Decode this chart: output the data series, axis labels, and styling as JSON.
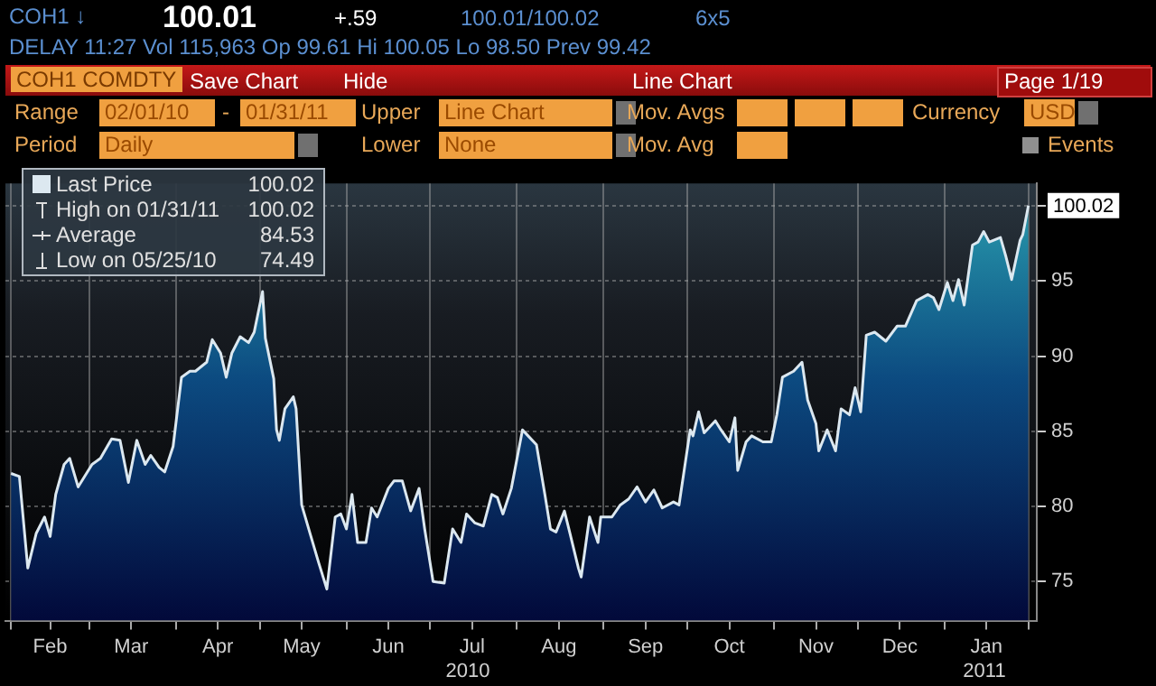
{
  "chart_data": {
    "type": "area",
    "x": [
      "2010-02-01",
      "2010-02-04",
      "2010-02-07",
      "2010-02-10",
      "2010-02-13",
      "2010-02-15",
      "2010-02-17",
      "2010-02-20",
      "2010-02-22",
      "2010-02-25",
      "2010-02-27",
      "2010-03-02",
      "2010-03-05",
      "2010-03-09",
      "2010-03-12",
      "2010-03-15",
      "2010-03-18",
      "2010-03-21",
      "2010-03-23",
      "2010-03-26",
      "2010-03-28",
      "2010-03-31",
      "2010-04-03",
      "2010-04-06",
      "2010-04-08",
      "2010-04-12",
      "2010-04-14",
      "2010-04-17",
      "2010-04-19",
      "2010-04-21",
      "2010-04-24",
      "2010-04-27",
      "2010-04-29",
      "2010-05-02",
      "2010-05-03",
      "2010-05-06",
      "2010-05-07",
      "2010-05-08",
      "2010-05-10",
      "2010-05-13",
      "2010-05-14",
      "2010-05-16",
      "2010-05-19",
      "2010-05-22",
      "2010-05-25",
      "2010-05-28",
      "2010-05-30",
      "2010-06-01",
      "2010-06-03",
      "2010-06-05",
      "2010-06-08",
      "2010-06-10",
      "2010-06-12",
      "2010-06-16",
      "2010-06-18",
      "2010-06-21",
      "2010-06-24",
      "2010-06-27",
      "2010-06-29",
      "2010-07-02",
      "2010-07-06",
      "2010-07-09",
      "2010-07-12",
      "2010-07-14",
      "2010-07-17",
      "2010-07-20",
      "2010-07-23",
      "2010-07-25",
      "2010-07-27",
      "2010-07-30",
      "2010-08-03",
      "2010-08-05",
      "2010-08-08",
      "2010-08-11",
      "2010-08-13",
      "2010-08-15",
      "2010-08-18",
      "2010-08-20",
      "2010-08-23",
      "2010-08-24",
      "2010-08-27",
      "2010-08-30",
      "2010-08-31",
      "2010-09-04",
      "2010-09-07",
      "2010-09-10",
      "2010-09-13",
      "2010-09-16",
      "2010-09-19",
      "2010-09-22",
      "2010-09-26",
      "2010-09-28",
      "2010-10-02",
      "2010-10-03",
      "2010-10-05",
      "2010-10-07",
      "2010-10-11",
      "2010-10-13",
      "2010-10-16",
      "2010-10-18",
      "2010-10-19",
      "2010-10-22",
      "2010-10-24",
      "2010-10-28",
      "2010-10-31",
      "2010-11-02",
      "2010-11-04",
      "2010-11-08",
      "2010-11-11",
      "2010-11-13",
      "2010-11-16",
      "2010-11-17",
      "2010-11-20",
      "2010-11-23",
      "2010-11-25",
      "2010-11-28",
      "2010-11-30",
      "2010-12-02",
      "2010-12-04",
      "2010-12-07",
      "2010-12-11",
      "2010-12-15",
      "2010-12-18",
      "2010-12-22",
      "2010-12-26",
      "2010-12-28",
      "2010-12-30",
      "2011-01-02",
      "2011-01-04",
      "2011-01-06",
      "2011-01-08",
      "2011-01-11",
      "2011-01-13",
      "2011-01-15",
      "2011-01-17",
      "2011-01-21",
      "2011-01-23",
      "2011-01-25",
      "2011-01-28",
      "2011-01-29",
      "2011-01-31"
    ],
    "series": [
      {
        "name": "Last Price",
        "color": "#dce8f0",
        "values": [
          82.2,
          82.0,
          75.9,
          78.2,
          79.3,
          78.0,
          80.8,
          82.8,
          83.2,
          81.3,
          81.9,
          82.8,
          83.2,
          84.5,
          84.4,
          81.6,
          84.4,
          82.8,
          83.4,
          82.6,
          82.3,
          84.0,
          88.6,
          89.0,
          89.0,
          89.6,
          91.1,
          90.2,
          88.6,
          90.2,
          91.3,
          90.9,
          91.6,
          94.3,
          91.2,
          88.5,
          85.1,
          84.4,
          86.5,
          87.3,
          86.5,
          80.1,
          78.2,
          76.3,
          74.5,
          79.3,
          79.5,
          78.5,
          80.8,
          77.6,
          77.6,
          79.9,
          79.3,
          81.2,
          81.7,
          81.7,
          79.7,
          81.2,
          78.5,
          75.0,
          74.9,
          78.5,
          77.6,
          79.5,
          78.9,
          78.7,
          80.8,
          80.6,
          79.5,
          81.2,
          85.1,
          84.7,
          84.1,
          80.8,
          78.5,
          78.3,
          79.7,
          78.2,
          75.9,
          75.3,
          79.3,
          77.6,
          79.3,
          79.3,
          80.1,
          80.5,
          81.3,
          80.3,
          81.1,
          79.9,
          80.3,
          80.1,
          85.1,
          84.7,
          86.3,
          84.9,
          85.7,
          85.1,
          84.3,
          85.9,
          82.4,
          84.3,
          84.7,
          84.3,
          84.3,
          86.1,
          88.6,
          89.0,
          89.6,
          87.1,
          85.5,
          83.7,
          85.1,
          83.7,
          86.5,
          86.1,
          87.9,
          86.3,
          91.4,
          91.6,
          91.0,
          92.0,
          92.0,
          93.7,
          94.1,
          93.9,
          93.1,
          94.9,
          93.7,
          95.1,
          93.4,
          97.4,
          97.6,
          98.3,
          97.6,
          97.9,
          96.6,
          95.1,
          97.7,
          98.1,
          100.02
        ],
        "value_labels": [
          null,
          null,
          null,
          null,
          null,
          null,
          null,
          null,
          null,
          null,
          null,
          null,
          null,
          null,
          null,
          null,
          null,
          null,
          null,
          null,
          null,
          null,
          null,
          null,
          null,
          null,
          null,
          null,
          null,
          null,
          null,
          null,
          null,
          null,
          null,
          null,
          null,
          null,
          null,
          null,
          null,
          null,
          null,
          null,
          null,
          null,
          null,
          null,
          null,
          null,
          null,
          null,
          null,
          null,
          null,
          null,
          null,
          null,
          null,
          null,
          null,
          null,
          null,
          null,
          null,
          null,
          null,
          null,
          null,
          null,
          null,
          null,
          null,
          null,
          null,
          null,
          null,
          null,
          null,
          null,
          null,
          null,
          null,
          null,
          null,
          null,
          null,
          null,
          null,
          null,
          null,
          null,
          null,
          null,
          null,
          null,
          null,
          null,
          null,
          null,
          null,
          null,
          null,
          null,
          null,
          null,
          null,
          null,
          null,
          null,
          null,
          null,
          null,
          null,
          null,
          null,
          null,
          null,
          null,
          null,
          null,
          null,
          null,
          null,
          null,
          null,
          null,
          null,
          null,
          null,
          null,
          null,
          null,
          null,
          null,
          null,
          null,
          null,
          null,
          null,
          "100.02"
        ]
      }
    ],
    "xlim": [
      "2010-01-30",
      "2011-02-03"
    ],
    "xticks": [
      {
        "value": "2010-02-01",
        "label": null
      },
      {
        "value": "2010-02-15",
        "label": "Feb"
      },
      {
        "value": "2010-03-01",
        "label": null
      },
      {
        "value": "2010-03-16",
        "label": "Mar"
      },
      {
        "value": "2010-04-01",
        "label": null
      },
      {
        "value": "2010-04-16",
        "label": "Apr"
      },
      {
        "value": "2010-05-01",
        "label": null
      },
      {
        "value": "2010-05-16",
        "label": "May"
      },
      {
        "value": "2010-06-01",
        "label": null
      },
      {
        "value": "2010-06-16",
        "label": "Jun"
      },
      {
        "value": "2010-07-01",
        "label": null
      },
      {
        "value": "2010-07-16",
        "label": "Jul"
      },
      {
        "value": "2010-08-01",
        "label": null
      },
      {
        "value": "2010-08-16",
        "label": "Aug"
      },
      {
        "value": "2010-09-01",
        "label": null
      },
      {
        "value": "2010-09-16",
        "label": "Sep"
      },
      {
        "value": "2010-10-01",
        "label": null
      },
      {
        "value": "2010-10-16",
        "label": "Oct"
      },
      {
        "value": "2010-11-01",
        "label": null
      },
      {
        "value": "2010-11-16",
        "label": "Nov"
      },
      {
        "value": "2010-12-01",
        "label": null
      },
      {
        "value": "2010-12-16",
        "label": "Dec"
      },
      {
        "value": "2011-01-01",
        "label": null
      },
      {
        "value": "2011-01-16",
        "label": "Jan"
      },
      {
        "value": "2011-01-31",
        "label": null
      }
    ],
    "ylim": [
      72.4,
      101.5
    ],
    "yticks": [
      75,
      80,
      85,
      90,
      95,
      {
        "value": 100,
        "label": null
      }
    ],
    "grid": true,
    "legend": "top left",
    "annotations": [
      "COH1 ↓",
      "100.01",
      "+.59",
      "100.01/100.02",
      "6x5",
      "DELAY 11:27 Vol 115,963 Op 99.61 Hi 100.05 Lo 98.50 Prev 99.42",
      "COH1 COMDTY",
      "Save Chart",
      "Hide",
      "Line Chart",
      "Page 1/19",
      "Range",
      "02/01/10",
      "-",
      "01/31/11",
      "Upper",
      "Line Chart",
      "Mov. Avgs",
      "Currency",
      "USD",
      "Period",
      "Daily",
      "Lower",
      "None",
      "Mov. Avg",
      "Events",
      "High on 01/31/11",
      "100.02",
      "Average",
      "84.53",
      "Low on 05/25/10",
      "74.49",
      "100.02",
      "2010",
      "2011"
    ]
  }
}
